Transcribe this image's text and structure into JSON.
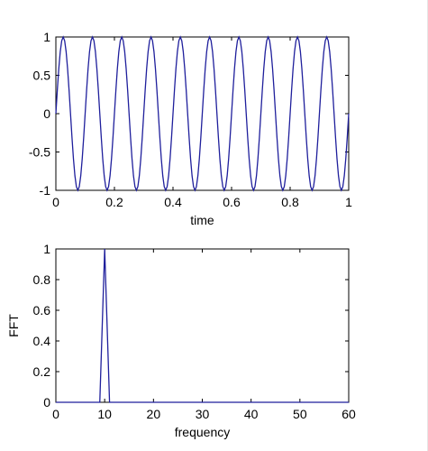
{
  "chart_data": [
    {
      "type": "line",
      "title": "",
      "xlabel": "time",
      "ylabel": "",
      "xlim": [
        0,
        1
      ],
      "ylim": [
        -1,
        1
      ],
      "xticks": [
        0,
        0.2,
        0.4,
        0.6,
        0.8,
        1
      ],
      "xtick_labels": [
        "0",
        "0.2",
        "0.4",
        "0.6",
        "0.8",
        "1"
      ],
      "yticks": [
        -1,
        -0.5,
        0,
        0.5,
        1
      ],
      "ytick_labels": [
        "-1",
        "-0.5",
        "0",
        "0.5",
        "1"
      ],
      "grid": false,
      "series": [
        {
          "color": "#1f1f9c",
          "function": "sin",
          "frequency_hz": 10,
          "amplitude": 1,
          "samples": 200
        }
      ]
    },
    {
      "type": "line",
      "title": "",
      "xlabel": "frequency",
      "ylabel": "FFT",
      "xlim": [
        0,
        60
      ],
      "ylim": [
        0,
        1
      ],
      "xticks": [
        0,
        10,
        20,
        30,
        40,
        50,
        60
      ],
      "xtick_labels": [
        "0",
        "10",
        "20",
        "30",
        "40",
        "50",
        "60"
      ],
      "yticks": [
        0,
        0.2,
        0.4,
        0.6,
        0.8,
        1
      ],
      "ytick_labels": [
        "0",
        "0.2",
        "0.4",
        "0.6",
        "0.8",
        "1"
      ],
      "grid": false,
      "series": [
        {
          "color": "#1f1f9c",
          "x": [
            0,
            9,
            10,
            11,
            12,
            60
          ],
          "y": [
            0,
            0,
            1,
            0,
            0,
            0
          ]
        }
      ]
    }
  ]
}
